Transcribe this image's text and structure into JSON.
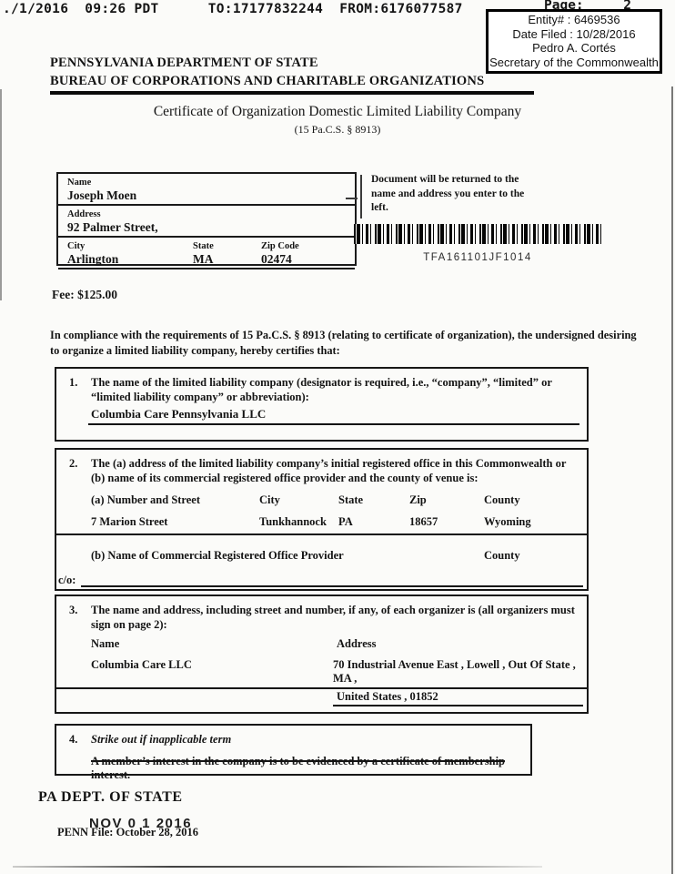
{
  "fax": {
    "line": "./1/2016  09:26 PDT      TO:17177832244  FROM:6176077587",
    "page": "Page:     2"
  },
  "stamp": {
    "entity": "Entity# : 6469536",
    "date_filed": "Date Filed : 10/28/2016",
    "officer": "Pedro A. Cortés",
    "officer_title": "Secretary of the Commonwealth"
  },
  "agency": {
    "line1": "PENNSYLVANIA DEPARTMENT OF STATE",
    "line2": "BUREAU OF CORPORATIONS AND CHARITABLE ORGANIZATIONS"
  },
  "doc": {
    "title": "Certificate of Organization Domestic Limited Liability Company",
    "statute": "(15 Pa.C.S. § 8913)"
  },
  "return_box": {
    "name_label": "Name",
    "name": "Joseph Moen",
    "address_label": "Address",
    "address": "92 Palmer Street,",
    "city_label": "City",
    "city": "Arlington",
    "state_label": "State",
    "state": "MA",
    "zip_label": "Zip Code",
    "zip": "02474"
  },
  "return_note": "Document will be returned to the name and address you enter to the left.",
  "barcode": {
    "text": "TFA161101JF1014"
  },
  "fee": "Fee: $125.00",
  "compliance": "In compliance with the requirements of 15 Pa.C.S. § 8913 (relating to certificate of organization), the undersigned desiring to organize a limited liability company, hereby certifies that:",
  "s1": {
    "num": "1.",
    "prompt": "The name of the limited liability company (designator is required, i.e., “company”, “limited” or “limited liability company” or abbreviation):",
    "value": "Columbia Care Pennsylvania LLC"
  },
  "s2": {
    "num": "2.",
    "prompt": "The (a) address of the limited liability company’s initial registered office in this Commonwealth or (b) name of its commercial registered office provider and the county of venue is:",
    "h_street": "(a) Number and Street",
    "h_city": "City",
    "h_state": "State",
    "h_zip": "Zip",
    "h_county": "County",
    "street": "7 Marion Street",
    "city": "Tunkhannock",
    "state": "PA",
    "zip": "18657",
    "county": "Wyoming",
    "b_label": "(b) Name of Commercial Registered Office Provider",
    "b_county": "County",
    "co_label": "c/o:"
  },
  "s3": {
    "num": "3.",
    "prompt": "The name and address, including street and number, if any, of each organizer is (all organizers must sign on page 2):",
    "h_name": "Name",
    "h_address": "Address",
    "name": "Columbia Care LLC",
    "address1": "70 Industrial Avenue East , Lowell , Out Of State , MA ,",
    "address2": "United States , 01852"
  },
  "s4": {
    "num": "4.",
    "prompt": "Strike out if inapplicable term",
    "struck": "A member’s interest in the company is to be evidenced by a certificate of membership interest."
  },
  "footer": {
    "dept": "PA DEPT. OF STATE",
    "date_stamp": "NOV 0 1 2016",
    "penn_file": "PENN File: October 28, 2016"
  }
}
